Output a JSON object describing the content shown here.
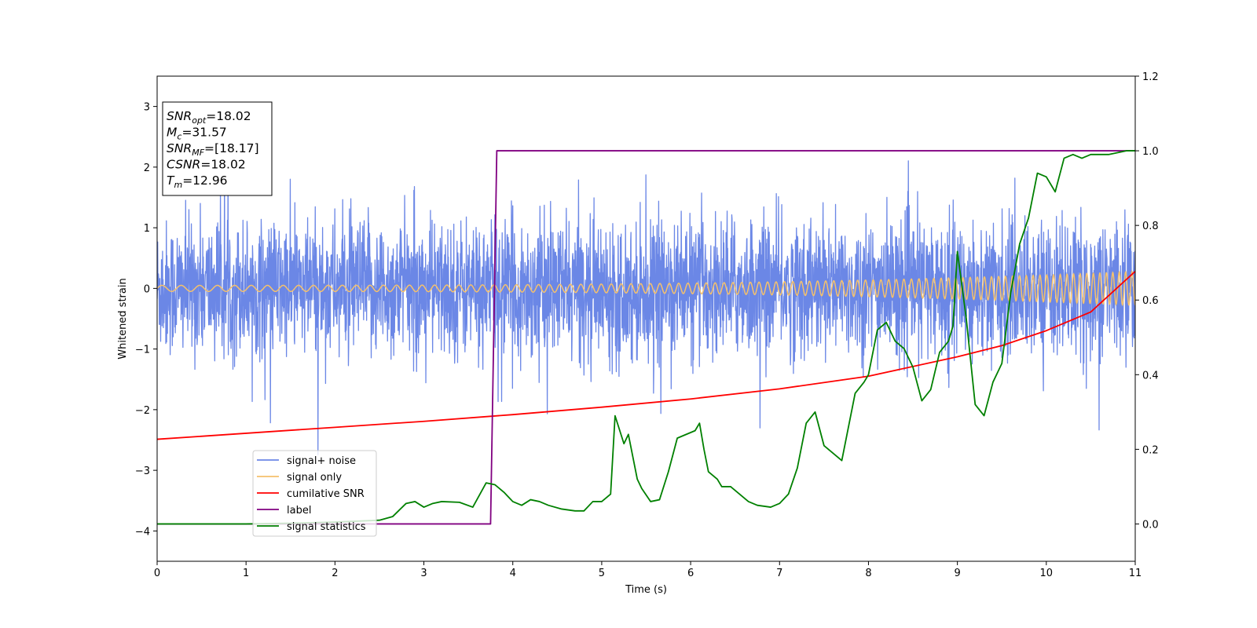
{
  "chart_data": {
    "type": "line",
    "xlabel": "Time (s)",
    "ylabel_left": "Whitened strain",
    "ylabel_right": "",
    "xlim": [
      0,
      11
    ],
    "ylim_left": [
      -4.5,
      3.5
    ],
    "ylim_right": [
      -0.1,
      1.2
    ],
    "x_ticks": [
      0,
      1,
      2,
      3,
      4,
      5,
      6,
      7,
      8,
      9,
      10,
      11
    ],
    "x_tick_labels": [
      "0",
      "1",
      "2",
      "3",
      "4",
      "5",
      "6",
      "7",
      "8",
      "9",
      "10",
      "11"
    ],
    "y_left_ticks": [
      3,
      2,
      1,
      0,
      -1,
      -2,
      -3,
      -4
    ],
    "y_left_tick_labels": [
      "3",
      "2",
      "1",
      "0",
      "−1",
      "−2",
      "−3",
      "−4"
    ],
    "y_right_ticks": [
      1.2,
      1.0,
      0.8,
      0.6,
      0.4,
      0.2,
      0.0
    ],
    "y_right_tick_labels": [
      "1.2",
      "1.0",
      "0.8",
      "0.6",
      "0.4",
      "0.2",
      "0.0"
    ],
    "grid": false,
    "legend_position": "lower-left",
    "series": [
      {
        "name": "signal+ noise",
        "axis": "left",
        "color": "#6b87e6",
        "kind": "noise",
        "spread": 0.55,
        "description_values": "random whitened strain noise roughly within -2.5 to 3.2"
      },
      {
        "name": "signal only",
        "axis": "left",
        "color": "#f5c16c",
        "kind": "chirp",
        "amplitude_start": 0.05,
        "amplitude_end": 0.28,
        "cycles_start": 4.5,
        "cycles_end": 14
      },
      {
        "name": "cumilative SNR",
        "axis": "right",
        "color": "#ff0000",
        "x": [
          0,
          1,
          2,
          3,
          4,
          5,
          6,
          7,
          8,
          9,
          9.5,
          10,
          10.5,
          11
        ],
        "y": [
          0.227,
          0.243,
          0.259,
          0.275,
          0.293,
          0.313,
          0.335,
          0.362,
          0.396,
          0.448,
          0.478,
          0.518,
          0.568,
          0.677
        ]
      },
      {
        "name": "label",
        "axis": "right",
        "color": "#800080",
        "x": [
          0,
          3.75,
          3.82,
          11
        ],
        "y": [
          0.0,
          0.0,
          1.0,
          1.0
        ]
      },
      {
        "name": "signal statistics",
        "axis": "right",
        "color": "#008000",
        "x": [
          0,
          0.5,
          1,
          1.5,
          2,
          2.5,
          2.65,
          2.8,
          2.9,
          3.0,
          3.1,
          3.2,
          3.4,
          3.55,
          3.7,
          3.8,
          3.9,
          4.0,
          4.1,
          4.2,
          4.3,
          4.4,
          4.55,
          4.7,
          4.8,
          4.9,
          5.0,
          5.1,
          5.15,
          5.25,
          5.3,
          5.35,
          5.4,
          5.45,
          5.55,
          5.65,
          5.75,
          5.85,
          5.95,
          6.05,
          6.1,
          6.15,
          6.2,
          6.3,
          6.35,
          6.45,
          6.55,
          6.65,
          6.75,
          6.9,
          7.0,
          7.1,
          7.2,
          7.3,
          7.4,
          7.5,
          7.6,
          7.7,
          7.85,
          7.95,
          8.0,
          8.1,
          8.2,
          8.3,
          8.4,
          8.5,
          8.6,
          8.7,
          8.8,
          8.9,
          8.95,
          9.0,
          9.1,
          9.2,
          9.3,
          9.4,
          9.5,
          9.6,
          9.7,
          9.8,
          9.9,
          10.0,
          10.1,
          10.2,
          10.3,
          10.4,
          10.5,
          10.7,
          10.9,
          11
        ],
        "y": [
          0.0,
          0.0,
          0.0,
          0.002,
          0.005,
          0.01,
          0.02,
          0.055,
          0.06,
          0.045,
          0.055,
          0.06,
          0.058,
          0.045,
          0.11,
          0.105,
          0.085,
          0.06,
          0.05,
          0.065,
          0.06,
          0.05,
          0.04,
          0.035,
          0.035,
          0.06,
          0.06,
          0.08,
          0.29,
          0.215,
          0.24,
          0.18,
          0.12,
          0.095,
          0.06,
          0.065,
          0.14,
          0.23,
          0.24,
          0.25,
          0.27,
          0.2,
          0.14,
          0.12,
          0.1,
          0.1,
          0.08,
          0.06,
          0.05,
          0.045,
          0.055,
          0.08,
          0.15,
          0.27,
          0.3,
          0.21,
          0.19,
          0.17,
          0.35,
          0.38,
          0.4,
          0.52,
          0.54,
          0.49,
          0.47,
          0.42,
          0.33,
          0.36,
          0.46,
          0.49,
          0.53,
          0.73,
          0.55,
          0.32,
          0.29,
          0.38,
          0.43,
          0.62,
          0.75,
          0.82,
          0.94,
          0.93,
          0.89,
          0.98,
          0.99,
          0.98,
          0.99,
          0.99,
          1.0,
          1.0
        ]
      }
    ],
    "info_box": {
      "lines": [
        {
          "var": "SNR",
          "sub": "opt",
          "value": "=18.02"
        },
        {
          "var": "M",
          "sub": "c",
          "value": "=31.57"
        },
        {
          "var": "SNR",
          "sub": "MF",
          "value": "=[18.17]"
        },
        {
          "var": "CSNR",
          "sub": "",
          "value": "=18.02"
        },
        {
          "var": "T",
          "sub": "m",
          "value": "=12.96"
        }
      ]
    }
  }
}
